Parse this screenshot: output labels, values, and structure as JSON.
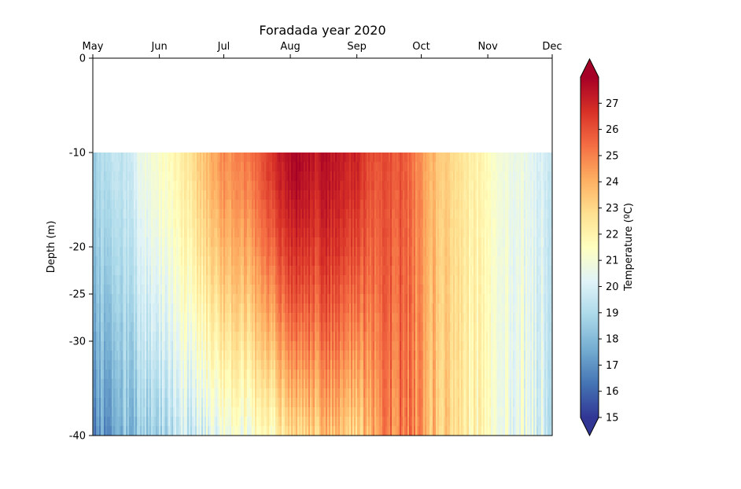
{
  "chart_data": {
    "type": "heatmap",
    "title": "Foradada year 2020",
    "ylabel": "Depth (m)",
    "colorbar_label": "Temperature (ºC)",
    "colormap": "RdYlBu_r",
    "colorbar_extend": "both",
    "clim": [
      15,
      28
    ],
    "colorbar_ticks": [
      15,
      16,
      17,
      18,
      19,
      20,
      21,
      22,
      23,
      24,
      25,
      26,
      27
    ],
    "x_axis_position": "top",
    "x_months": [
      "May",
      "Jun",
      "Jul",
      "Aug",
      "Sep",
      "Oct",
      "Nov",
      "Dec"
    ],
    "x_month_days": [
      0,
      31,
      61,
      92,
      123,
      153,
      184,
      214
    ],
    "y_ticks": [
      0,
      -10,
      -20,
      -25,
      -30,
      -40
    ],
    "ylim": [
      -40,
      0
    ],
    "data_depth_range": [
      -40,
      -10
    ],
    "temperature_profile": {
      "days": [
        0,
        5,
        10,
        15,
        20,
        25,
        31,
        36,
        40,
        45,
        50,
        55,
        61,
        64,
        68,
        72,
        76,
        80,
        84,
        88,
        92,
        96,
        100,
        104,
        108,
        112,
        116,
        120,
        123,
        127,
        131,
        135,
        140,
        145,
        153,
        160,
        168,
        176,
        184,
        192,
        200,
        207,
        214
      ],
      "surface_10m": [
        18.5,
        19.2,
        19.6,
        19.4,
        20.3,
        20.8,
        21.4,
        21.6,
        21.9,
        22.6,
        23.4,
        24.0,
        24.8,
        24.6,
        25.0,
        25.3,
        25.5,
        26.2,
        26.8,
        27.2,
        27.5,
        27.9,
        27.5,
        27.3,
        27.6,
        27.4,
        27.2,
        27.0,
        27.2,
        26.4,
        26.0,
        26.0,
        26.0,
        25.9,
        24.6,
        23.6,
        22.8,
        22.2,
        21.6,
        20.9,
        20.6,
        20.2,
        19.8
      ],
      "bottom_40m": [
        16.5,
        17.3,
        17.8,
        18.0,
        18.4,
        18.6,
        18.9,
        19.2,
        19.4,
        19.7,
        20.0,
        20.3,
        20.6,
        20.8,
        21.0,
        21.2,
        21.4,
        21.7,
        21.9,
        22.2,
        22.5,
        22.9,
        23.2,
        23.5,
        23.6,
        23.6,
        23.4,
        23.3,
        23.3,
        23.9,
        24.3,
        24.7,
        25.1,
        25.3,
        24.5,
        23.5,
        22.5,
        21.9,
        21.5,
        20.9,
        20.6,
        20.2,
        19.8
      ]
    }
  }
}
